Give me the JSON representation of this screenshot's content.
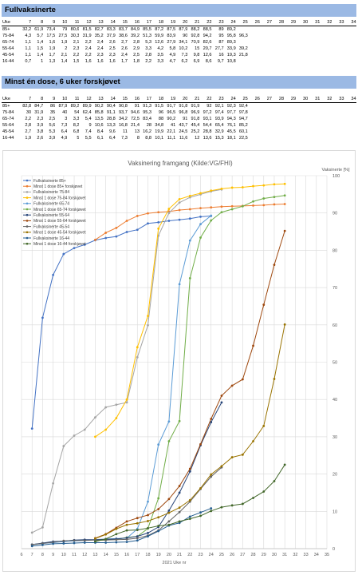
{
  "section1": {
    "title": "Fullvaksinerte",
    "columns": [
      "Uke",
      "7",
      "8",
      "9",
      "10",
      "11",
      "12",
      "13",
      "14",
      "15",
      "16",
      "17",
      "18",
      "19",
      "20",
      "21",
      "22",
      "23",
      "24",
      "25",
      "26",
      "27",
      "28",
      "29",
      "30",
      "31",
      "32",
      "33",
      "34"
    ],
    "rows": [
      [
        "85+",
        "32,2",
        "61,9",
        "73,4",
        "79",
        "80,6",
        "81,5",
        "82,7",
        "83,3",
        "83,7",
        "84,9",
        "85,5",
        "87,2",
        "87,5",
        "87,9",
        "88,2",
        "88,5",
        "89",
        "89,2"
      ],
      [
        "75-84",
        "4,3",
        "5,7",
        "17,5",
        "27,5",
        "30,3",
        "31,9",
        "35,2",
        "37,9",
        "38,6",
        "39,2",
        "51,3",
        "59,9",
        "83,9",
        "90",
        "92,8",
        "94,2",
        "95",
        "95,8",
        "96,3"
      ],
      [
        "65-74",
        "1,1",
        "1,4",
        "1,6",
        "1,9",
        "2,1",
        "2,2",
        "2,4",
        "2,6",
        "2,7",
        "2,8",
        "5,3",
        "12,6",
        "27,9",
        "34,1",
        "70,9",
        "82,6",
        "87",
        "89,3"
      ],
      [
        "55-64",
        "1,1",
        "1,5",
        "1,9",
        "2",
        "2,3",
        "2,4",
        "2,4",
        "2,5",
        "2,6",
        "2,9",
        "3,3",
        "4,2",
        "5,8",
        "10,2",
        "15",
        "20,7",
        "27,7",
        "33,9",
        "39,2"
      ],
      [
        "45-54",
        "1,1",
        "1,4",
        "1,7",
        "2,1",
        "2,2",
        "2,2",
        "2,3",
        "2,3",
        "2,4",
        "2,5",
        "2,8",
        "3,5",
        "4,9",
        "7,3",
        "9,8",
        "12,6",
        "16",
        "19,3",
        "21,8"
      ],
      [
        "16-44",
        "0,7",
        "1",
        "1,3",
        "1,4",
        "1,5",
        "1,6",
        "1,6",
        "1,6",
        "1,7",
        "1,8",
        "2,2",
        "3,3",
        "4,7",
        "6,2",
        "6,9",
        "8,6",
        "9,7",
        "10,8"
      ]
    ]
  },
  "section2": {
    "title": "Minst én dose, 6 uker forskjøvet",
    "columns": [
      "Uke",
      "7",
      "8",
      "9",
      "10",
      "11",
      "12",
      "13",
      "14",
      "15",
      "16",
      "17",
      "18",
      "19",
      "20",
      "21",
      "22",
      "23",
      "24",
      "25",
      "26",
      "27",
      "28",
      "29",
      "30",
      "31",
      "32",
      "33",
      "34"
    ],
    "rows": [
      [
        "85+",
        "82,8",
        "84,7",
        "86",
        "87,9",
        "89,2",
        "89,9",
        "90,2",
        "90,4",
        "90,8",
        "91",
        "91,3",
        "91,5",
        "91,7",
        "91,8",
        "91,9",
        "92",
        "92,1",
        "92,3",
        "92,4"
      ],
      [
        "75-84",
        "30",
        "31,9",
        "35",
        "40",
        "54",
        "62,4",
        "85,8",
        "91,1",
        "93,7",
        "94,6",
        "95,3",
        "96",
        "96,5",
        "96,8",
        "96,9",
        "97,2",
        "97,4",
        "97,7",
        "97,8"
      ],
      [
        "65-74",
        "2,2",
        "2,3",
        "2,5",
        "3",
        "3,3",
        "5,4",
        "13,5",
        "28,8",
        "34,2",
        "72,5",
        "83,4",
        "88",
        "90,2",
        "91",
        "91,8",
        "93,1",
        "93,9",
        "94,3",
        "94,7"
      ],
      [
        "55-64",
        "2,8",
        "3,9",
        "5,6",
        "7,3",
        "8,2",
        "9",
        "10,6",
        "13,3",
        "16,8",
        "21,4",
        "28",
        "34,8",
        "41",
        "43,7",
        "45,4",
        "54,4",
        "65,4",
        "76,1",
        "85,2"
      ],
      [
        "45-54",
        "2,7",
        "3,8",
        "5,3",
        "6,4",
        "6,8",
        "7,4",
        "8,4",
        "9,6",
        "11",
        "13",
        "16,2",
        "19,9",
        "22,1",
        "24,5",
        "25,2",
        "28,8",
        "32,9",
        "45,5",
        "60,1"
      ],
      [
        "16-44",
        "1,9",
        "2,6",
        "3,9",
        "4,9",
        "5",
        "5,5",
        "6,1",
        "6,4",
        "7,3",
        "8",
        "8,8",
        "10,1",
        "11,1",
        "11,6",
        "12",
        "13,6",
        "15,3",
        "18,1",
        "22,5"
      ]
    ]
  },
  "chart_data": {
    "type": "line",
    "title": "Vaksinering framgang (Kilde:VG/FHI)",
    "xlabel": "2021 Uke nr",
    "ylabel": "Vaksinerte [%]",
    "xlim": [
      6,
      35
    ],
    "ylim": [
      0,
      100
    ],
    "x_ticks": [
      6,
      7,
      8,
      9,
      10,
      11,
      12,
      13,
      14,
      15,
      16,
      17,
      18,
      19,
      20,
      21,
      22,
      23,
      24,
      25,
      26,
      27,
      28,
      29,
      30,
      31,
      32,
      33,
      34,
      35
    ],
    "y_ticks": [
      0,
      10,
      20,
      30,
      40,
      50,
      60,
      70,
      80,
      90,
      100
    ],
    "grid": true,
    "legend_position": "top-left",
    "y_axis_side": "right",
    "series": [
      {
        "name": "Fullvaksinerte 85+",
        "color": "#4472c4",
        "x": [
          7,
          8,
          9,
          10,
          11,
          12,
          13,
          14,
          15,
          16,
          17,
          18,
          19,
          20,
          21,
          22,
          23,
          24
        ],
        "values": [
          32.2,
          61.9,
          73.4,
          79,
          80.6,
          81.5,
          82.7,
          83.3,
          83.7,
          84.9,
          85.5,
          87.2,
          87.5,
          87.9,
          88.2,
          88.5,
          89,
          89.2
        ]
      },
      {
        "name": "Minst 1 dose 85+ forskjøvet",
        "color": "#ed7d31",
        "x": [
          13,
          14,
          15,
          16,
          17,
          18,
          19,
          20,
          21,
          22,
          23,
          24,
          25,
          26,
          27,
          28,
          29,
          30,
          31
        ],
        "values": [
          82.8,
          84.7,
          86,
          87.9,
          89.2,
          89.9,
          90.2,
          90.4,
          90.8,
          91,
          91.3,
          91.5,
          91.7,
          91.8,
          91.9,
          92,
          92.1,
          92.3,
          92.4
        ]
      },
      {
        "name": "Fullvaksinerte 75-84",
        "color": "#a5a5a5",
        "x": [
          7,
          8,
          9,
          10,
          11,
          12,
          13,
          14,
          15,
          16,
          17,
          18,
          19,
          20,
          21,
          22,
          23,
          24,
          25
        ],
        "values": [
          4.3,
          5.7,
          17.5,
          27.5,
          30.3,
          31.9,
          35.2,
          37.9,
          38.6,
          39.2,
          51.3,
          59.9,
          83.9,
          90,
          92.8,
          94.2,
          95,
          95.8,
          96.3
        ]
      },
      {
        "name": "Minst 1 dose 75-84 forskjøvet",
        "color": "#ffc000",
        "x": [
          13,
          14,
          15,
          16,
          17,
          18,
          19,
          20,
          21,
          22,
          23,
          24,
          25,
          26,
          27,
          28,
          29,
          30,
          31
        ],
        "values": [
          30,
          31.9,
          35,
          40,
          54,
          62.4,
          85.8,
          91.1,
          93.7,
          94.6,
          95.3,
          96,
          96.5,
          96.8,
          96.9,
          97.2,
          97.4,
          97.7,
          97.8
        ]
      },
      {
        "name": "Fullvaksinerte 65-74",
        "color": "#5b9bd5",
        "x": [
          7,
          8,
          9,
          10,
          11,
          12,
          13,
          14,
          15,
          16,
          17,
          18,
          19,
          20,
          21,
          22,
          23,
          24
        ],
        "values": [
          1.1,
          1.4,
          1.6,
          1.9,
          2.1,
          2.2,
          2.4,
          2.6,
          2.7,
          2.8,
          5.3,
          12.6,
          27.9,
          34.1,
          70.9,
          82.6,
          87,
          89.3
        ]
      },
      {
        "name": "Minst 1 dose 65-74 forskjøvet",
        "color": "#70ad47",
        "x": [
          13,
          14,
          15,
          16,
          17,
          18,
          19,
          20,
          21,
          22,
          23,
          24,
          25,
          26,
          27,
          28,
          29,
          30,
          31
        ],
        "values": [
          2.2,
          2.3,
          2.5,
          3,
          3.3,
          5.4,
          13.5,
          28.8,
          34.2,
          72.5,
          83.4,
          88,
          90.2,
          91,
          91.8,
          93.1,
          93.9,
          94.3,
          94.7
        ]
      },
      {
        "name": "Fullvaksinerte 55-64",
        "color": "#264478",
        "x": [
          7,
          8,
          9,
          10,
          11,
          12,
          13,
          14,
          15,
          16,
          17,
          18,
          19,
          20,
          21,
          22,
          23,
          24,
          25
        ],
        "values": [
          1.1,
          1.5,
          1.9,
          2,
          2.3,
          2.4,
          2.4,
          2.5,
          2.6,
          2.9,
          3.3,
          4.2,
          5.8,
          10.2,
          15,
          20.7,
          27.7,
          33.9,
          39.2
        ]
      },
      {
        "name": "Minst 1 dose 55-64 forskjøvet",
        "color": "#9e480e",
        "x": [
          13,
          14,
          15,
          16,
          17,
          18,
          19,
          20,
          21,
          22,
          23,
          24,
          25,
          26,
          27,
          28,
          29,
          30,
          31
        ],
        "values": [
          2.8,
          3.9,
          5.6,
          7.3,
          8.2,
          9,
          10.6,
          13.3,
          16.8,
          21.4,
          28,
          34.8,
          41,
          43.7,
          45.4,
          54.4,
          65.4,
          76.1,
          85.2
        ]
      },
      {
        "name": "Fullvaksinerte 45-54",
        "color": "#636363",
        "x": [
          7,
          8,
          9,
          10,
          11,
          12,
          13,
          14,
          15,
          16,
          17,
          18,
          19,
          20,
          21,
          22,
          23,
          24,
          25
        ],
        "values": [
          1.1,
          1.4,
          1.7,
          2.1,
          2.2,
          2.2,
          2.3,
          2.3,
          2.4,
          2.5,
          2.8,
          3.5,
          4.9,
          7.3,
          9.8,
          12.6,
          16,
          19.3,
          21.8
        ]
      },
      {
        "name": "Minst 1 dose 45-54 forskjøvet",
        "color": "#997300",
        "x": [
          13,
          14,
          15,
          16,
          17,
          18,
          19,
          20,
          21,
          22,
          23,
          24,
          25,
          26,
          27,
          28,
          29,
          30,
          31
        ],
        "values": [
          2.7,
          3.8,
          5.3,
          6.4,
          6.8,
          7.4,
          8.4,
          9.6,
          11,
          13,
          16.2,
          19.9,
          22.1,
          24.5,
          25.2,
          28.8,
          32.9,
          45.5,
          60.1
        ]
      },
      {
        "name": "Fullvaksinerte 16-44",
        "color": "#255e91",
        "x": [
          7,
          8,
          9,
          10,
          11,
          12,
          13,
          14,
          15,
          16,
          17,
          18,
          19,
          20,
          21,
          22,
          23,
          24
        ],
        "values": [
          0.7,
          1,
          1.3,
          1.4,
          1.5,
          1.6,
          1.6,
          1.6,
          1.7,
          1.8,
          2.2,
          3.3,
          4.7,
          6.2,
          6.9,
          8.6,
          9.7,
          10.8
        ]
      },
      {
        "name": "Minst 1 dose 16-44 forskjøvet",
        "color": "#43682b",
        "x": [
          13,
          14,
          15,
          16,
          17,
          18,
          19,
          20,
          21,
          22,
          23,
          24,
          25,
          26,
          27,
          28,
          29,
          30,
          31
        ],
        "values": [
          1.9,
          2.6,
          3.9,
          4.9,
          5,
          5.5,
          6.1,
          6.4,
          7.3,
          8,
          8.8,
          10.1,
          11.1,
          11.6,
          12,
          13.6,
          15.3,
          18.1,
          22.5
        ]
      }
    ]
  }
}
